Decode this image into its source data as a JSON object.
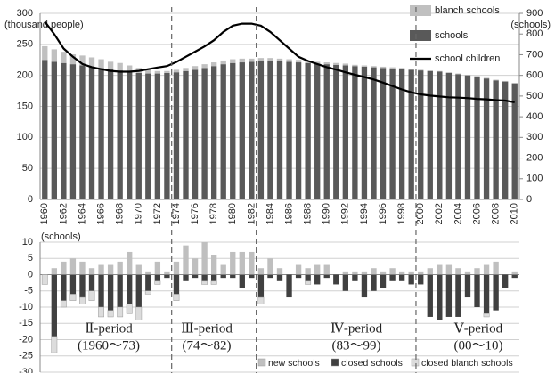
{
  "chart_data": [
    {
      "type": "bar",
      "stacked": true,
      "y_label": "(thousand people)",
      "y2_label": "(schools)",
      "categories": [
        "1960",
        null,
        "1962",
        null,
        "1964",
        null,
        "1966",
        null,
        "1968",
        null,
        "1970",
        null,
        "1972",
        null,
        "1974",
        null,
        "1976",
        null,
        "1978",
        null,
        "1980",
        null,
        "1982",
        null,
        "1984",
        null,
        "1986",
        null,
        "1988",
        null,
        "1990",
        null,
        "1992",
        null,
        "1994",
        null,
        "1996",
        null,
        "1998",
        null,
        "2000",
        null,
        "2002",
        null,
        "2004",
        null,
        "2006",
        null,
        "2008",
        null,
        "2010"
      ],
      "series": [
        {
          "name": "schools",
          "color": "#595959",
          "values": [
            225,
            222,
            220,
            218,
            216,
            214,
            212,
            210,
            208,
            206,
            204,
            203,
            203,
            204,
            205,
            207,
            209,
            212,
            215,
            218,
            220,
            221,
            222,
            223,
            223,
            223,
            222,
            221,
            220,
            219,
            218,
            217,
            216,
            215,
            214,
            213,
            212,
            211,
            210,
            209,
            208,
            207,
            206,
            204,
            202,
            200,
            198,
            195,
            192,
            190,
            187
          ]
        },
        {
          "name": "blanch schools",
          "color": "#c0c0c0",
          "values": [
            22,
            20,
            18,
            16,
            16,
            15,
            14,
            12,
            12,
            10,
            8,
            6,
            4,
            3,
            4,
            5,
            6,
            6,
            6,
            6,
            6,
            6,
            5,
            5,
            5,
            4,
            4,
            4,
            3,
            3,
            3,
            3,
            3,
            2,
            2,
            2,
            2,
            2,
            2,
            2,
            1,
            1,
            1,
            1,
            1,
            1,
            1,
            1,
            1,
            1,
            1
          ]
        },
        {
          "name": "school children",
          "color": "#000000",
          "axis": "y2",
          "line": true,
          "values": [
            860,
            800,
            730,
            690,
            655,
            640,
            630,
            622,
            618,
            618,
            622,
            630,
            638,
            645,
            665,
            690,
            715,
            740,
            770,
            810,
            840,
            850,
            850,
            840,
            810,
            770,
            730,
            690,
            670,
            655,
            640,
            628,
            615,
            603,
            592,
            580,
            565,
            548,
            532,
            518,
            508,
            502,
            498,
            494,
            492,
            490,
            486,
            484,
            480,
            478,
            470
          ]
        }
      ],
      "ylim": [
        0,
        300
      ],
      "yticks": [
        0,
        50,
        100,
        150,
        200,
        250,
        300
      ],
      "y2lim": [
        0,
        900
      ],
      "y2ticks": [
        0,
        100,
        200,
        300,
        400,
        500,
        600,
        700,
        800,
        900
      ],
      "grid": true,
      "legend": "top-right"
    },
    {
      "type": "bar",
      "stacked": true,
      "y_label": "(schools)",
      "series": [
        {
          "name": "new schools",
          "color": "#bfbfbf",
          "values": [
            0,
            2,
            4,
            5,
            4,
            2,
            3,
            3,
            4,
            7,
            3,
            1,
            4,
            1,
            4,
            9,
            5,
            10,
            6,
            3,
            7,
            7,
            7,
            2,
            5,
            2,
            0,
            3,
            2,
            3,
            3,
            0,
            1,
            1,
            1,
            2,
            1,
            2,
            1,
            1,
            1,
            2,
            3,
            3,
            2,
            1,
            2,
            3,
            4,
            0,
            1
          ]
        },
        {
          "name": "closed schools",
          "color": "#404040",
          "values": [
            0,
            -19,
            -8,
            -6,
            -7,
            -5,
            -10,
            -11,
            -10,
            -9,
            -10,
            -5,
            -2,
            -1,
            -6,
            -2,
            -1,
            -2,
            -2,
            -1,
            -1,
            -4,
            -1,
            -7,
            -1,
            -2,
            -7,
            -1,
            -2,
            -3,
            -1,
            -3,
            -5,
            -2,
            -7,
            -5,
            -4,
            -2,
            -2,
            -3,
            -3,
            -13,
            -14,
            -13,
            -13,
            -7,
            -10,
            -12,
            -11,
            -4,
            -1
          ]
        },
        {
          "name": "closed blanch schools",
          "color": "#dcdcdc",
          "values": [
            -3,
            -5,
            -2,
            -2,
            -2,
            -3,
            -3,
            -2,
            -3,
            -3,
            -4,
            -1,
            -1,
            0,
            -2,
            0,
            0,
            -1,
            -1,
            0,
            0,
            0,
            0,
            -2,
            0,
            0,
            0,
            0,
            -1,
            0,
            0,
            0,
            0,
            0,
            0,
            0,
            0,
            0,
            0,
            0,
            0,
            0,
            0,
            0,
            0,
            0,
            0,
            -1,
            0,
            0,
            0
          ]
        }
      ],
      "ylim": [
        -30,
        10
      ],
      "yticks": [
        -30,
        -25,
        -20,
        -15,
        -10,
        -5,
        0,
        5,
        10
      ],
      "grid": true,
      "legend": "bottom-right",
      "annotations": [
        {
          "label": "Ⅱ-period",
          "range": "(1960～73)"
        },
        {
          "label": "Ⅲ-period",
          "range": "(74～82)"
        },
        {
          "label": "Ⅳ-period",
          "range": "(83～99)"
        },
        {
          "label": "Ⅴ-period",
          "range": "(00～10)"
        }
      ]
    }
  ]
}
